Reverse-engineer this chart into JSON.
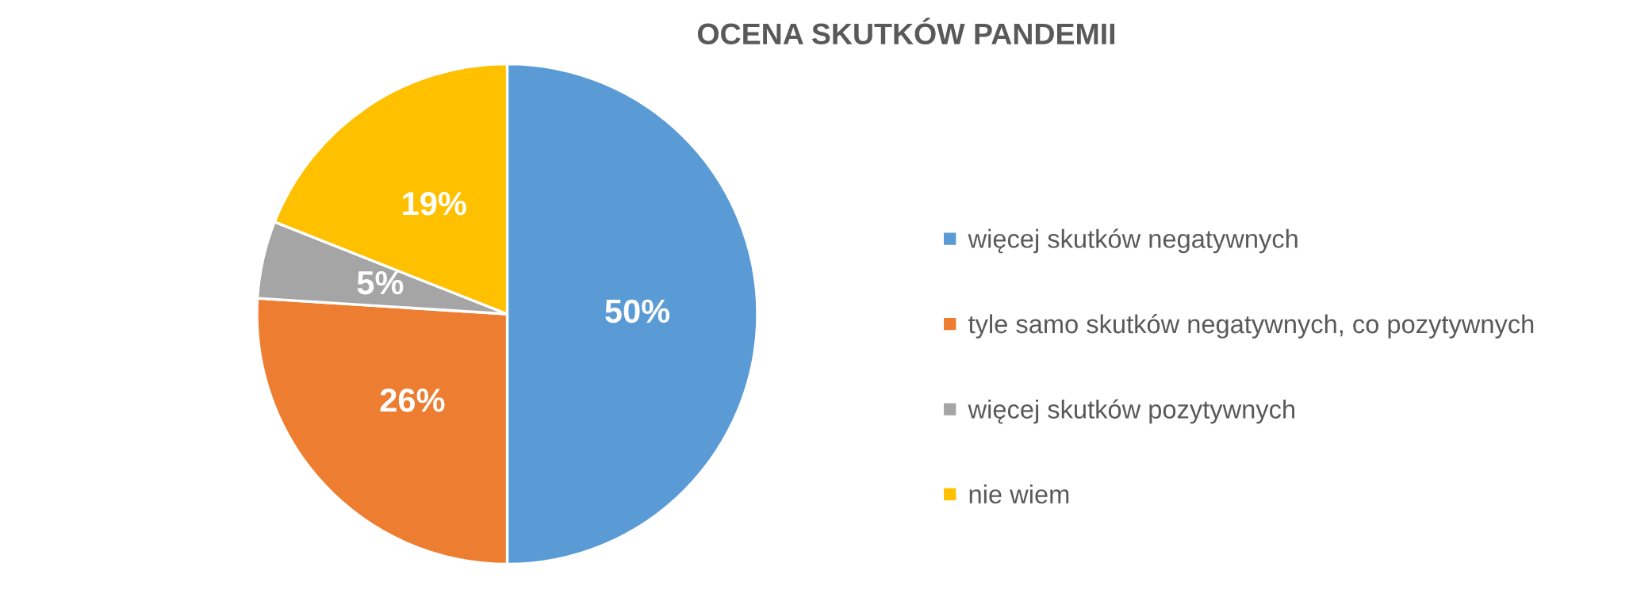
{
  "chart_data": {
    "type": "pie",
    "title": "OCENA SKUTKÓW PANDEMII",
    "categories": [
      "więcej skutków negatywnych",
      "tyle samo skutków negatywnych, co pozytywnych",
      "więcej skutków pozytywnych",
      "nie wiem"
    ],
    "values": [
      50,
      26,
      5,
      19
    ],
    "colors": [
      "#5b9bd5",
      "#ed7d31",
      "#a5a5a5",
      "#ffc000"
    ],
    "value_labels": [
      "50%",
      "26%",
      "5%",
      "19%"
    ],
    "legend": "right"
  }
}
